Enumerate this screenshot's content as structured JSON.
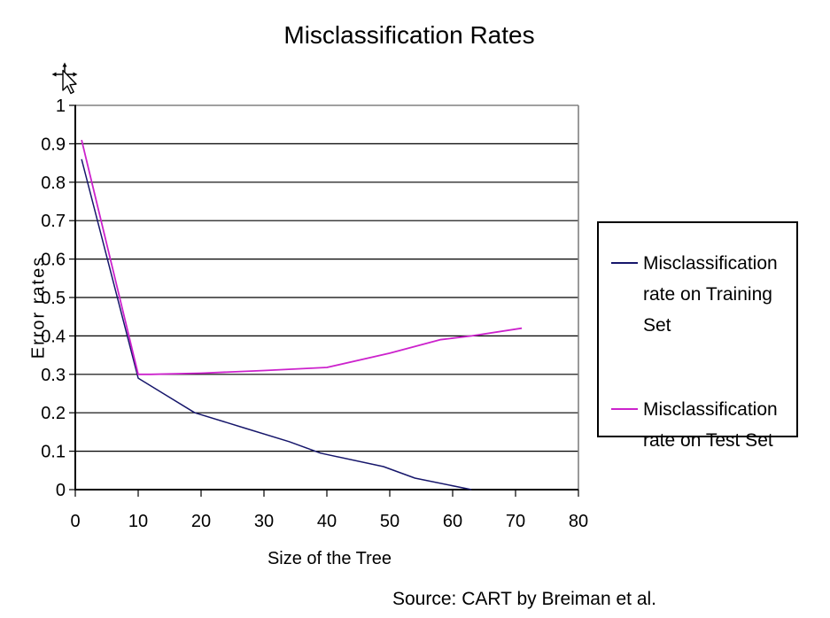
{
  "page": {
    "source_note": "Source: CART by Breiman et al."
  },
  "icons": {
    "cursor": "move-pointer-icon"
  },
  "colors": {
    "background": "#ffffff",
    "gridline": "#000000",
    "axis": "#000000",
    "plot_border_gray": "#808080",
    "legend_border": "#000000",
    "training_line": "#16166b",
    "test_line": "#cc22cc"
  },
  "chart_data": {
    "type": "line",
    "title": "Misclassification Rates",
    "xlabel": "Size of the Tree",
    "ylabel": "Error rates",
    "xlim": [
      0,
      80
    ],
    "ylim": [
      0,
      1
    ],
    "xticks": [
      0,
      10,
      20,
      30,
      40,
      50,
      60,
      70,
      80
    ],
    "xtick_labels": [
      "0",
      "10",
      "20",
      "30",
      "40",
      "50",
      "60",
      "70",
      "80"
    ],
    "yticks": [
      0,
      0.1,
      0.2,
      0.3,
      0.4,
      0.5,
      0.6,
      0.7,
      0.8,
      0.9,
      1
    ],
    "ytick_labels": [
      "0",
      "0.1",
      "0.2",
      "0.3",
      "0.4",
      "0.5",
      "0.6",
      "0.7",
      "0.8",
      "0.9",
      "1"
    ],
    "grid": "horizontal-black",
    "legend_position": "right",
    "series": [
      {
        "name": "Misclassification rate on Training Set",
        "color": "#16166b",
        "x": [
          1,
          10,
          14,
          19,
          27,
          34,
          39,
          49,
          54,
          63
        ],
        "y": [
          0.86,
          0.29,
          0.25,
          0.2,
          0.16,
          0.125,
          0.095,
          0.06,
          0.03,
          0.0
        ]
      },
      {
        "name": "Misclassification rate on Test Set",
        "color": "#cc22cc",
        "x": [
          1,
          10,
          12,
          20,
          30,
          40,
          50,
          58,
          63,
          71
        ],
        "y": [
          0.91,
          0.3,
          0.3,
          0.303,
          0.31,
          0.318,
          0.355,
          0.39,
          0.4,
          0.42
        ]
      }
    ]
  },
  "legend": {
    "entries": [
      {
        "label": "Misclassification rate on Training Set",
        "color": "#16166b"
      },
      {
        "label": "Misclassification rate on Test Set",
        "color": "#cc22cc"
      }
    ]
  }
}
